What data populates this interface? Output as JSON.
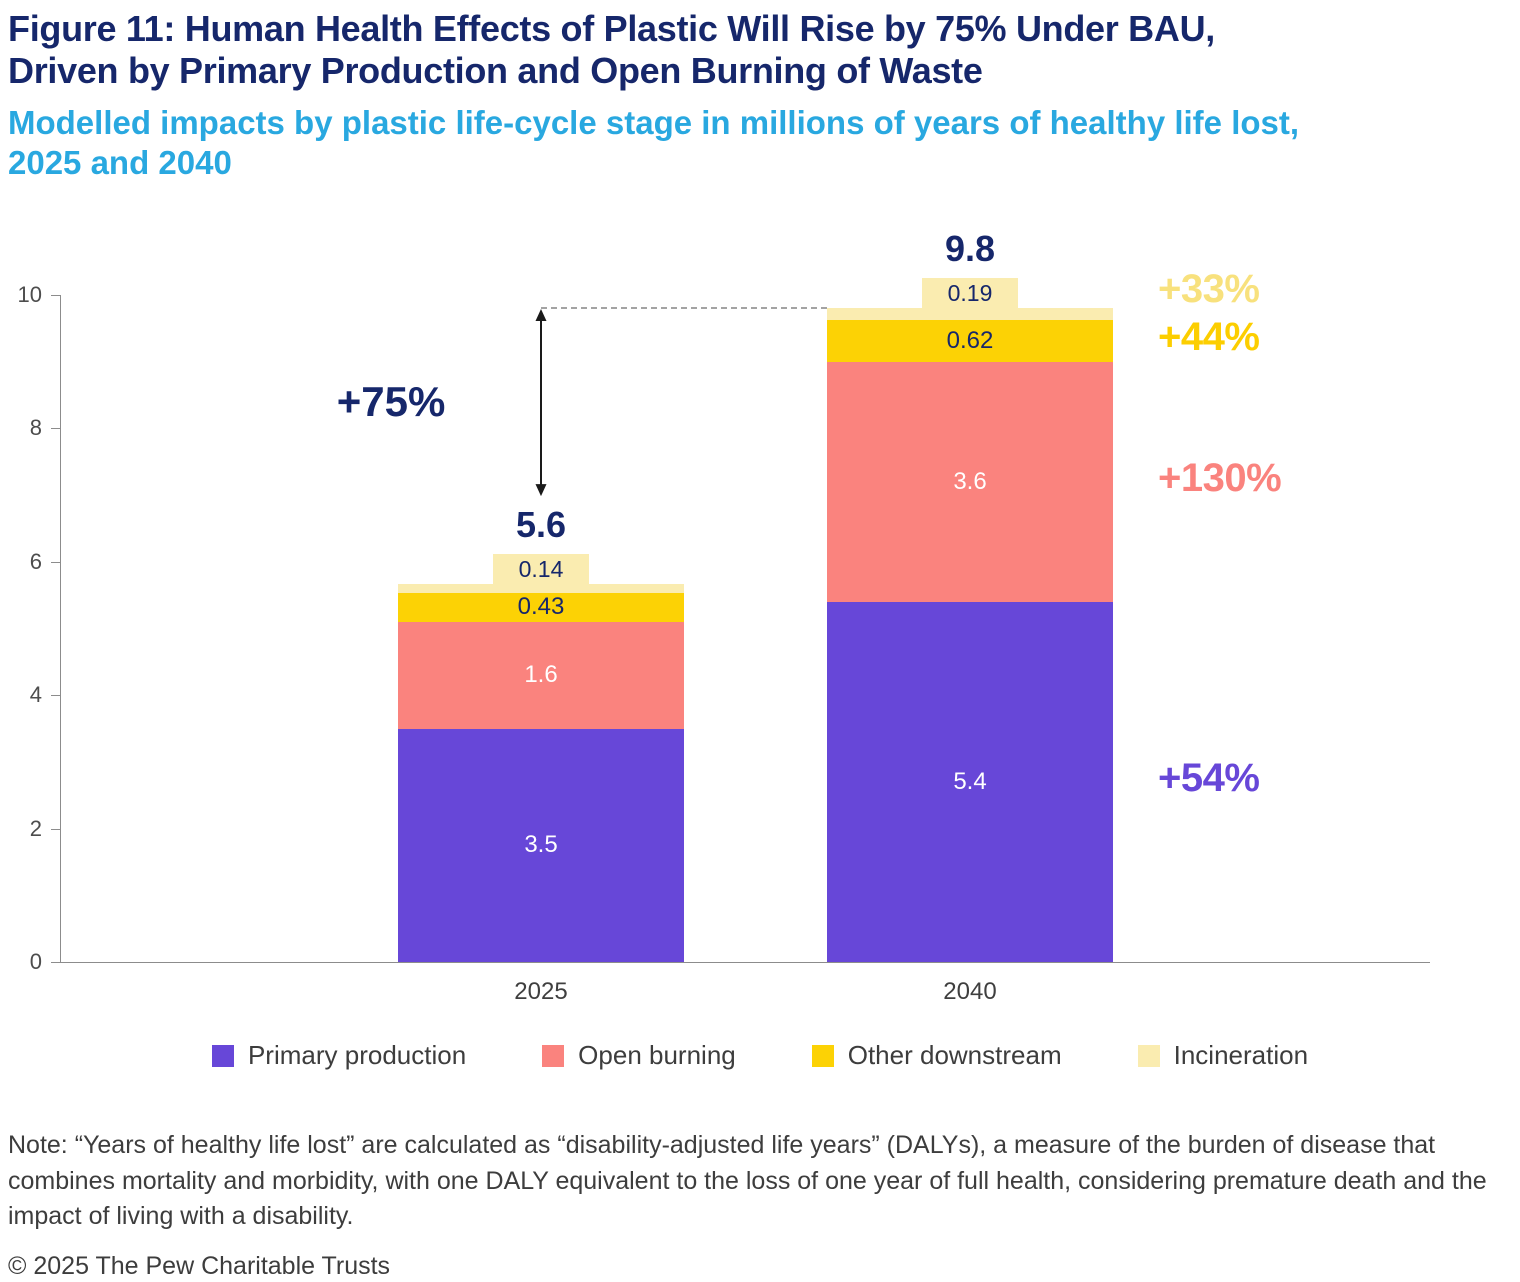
{
  "figure": {
    "title_lines": [
      "Figure 11: Human Health Effects of Plastic Will Rise by 75% Under BAU,",
      "Driven by Primary Production and Open Burning of Waste"
    ],
    "subtitle_lines": [
      "Modelled impacts by plastic life-cycle stage in millions of years of healthy life lost,",
      "2025 and 2040"
    ],
    "note": "Note: “Years of healthy life lost” are calculated as “disability-adjusted life years” (DALYs), a measure of the burden of disease that combines mortality and morbidity, with one DALY equivalent to the loss of one year of full health, considering premature death and the impact of living with a disability.",
    "copyright": "© 2025 The Pew Charitable Trusts",
    "colors": {
      "title_navy": "#16276b",
      "subtitle_blue": "#29a8e0"
    }
  },
  "chart_data": {
    "type": "bar",
    "stacked": true,
    "categories": [
      "2025",
      "2040"
    ],
    "series": [
      {
        "name": "Primary production",
        "color": "#6747d8",
        "label_color": "#ffffff",
        "values": [
          3.5,
          5.4
        ]
      },
      {
        "name": "Open burning",
        "color": "#fa837e",
        "label_color": "#ffffff",
        "values": [
          1.6,
          3.6
        ]
      },
      {
        "name": "Other downstream",
        "color": "#fcd205",
        "label_color": "#16276b",
        "values": [
          0.43,
          0.62
        ]
      },
      {
        "name": "Incineration",
        "color": "#faecb0",
        "label_color": "#16276b",
        "values": [
          0.14,
          0.19
        ]
      }
    ],
    "totals": [
      "5.6",
      "9.8"
    ],
    "title": "",
    "xlabel": "",
    "ylabel": "",
    "ylim": [
      0,
      10
    ],
    "yticks": [
      0,
      2,
      4,
      6,
      8,
      10
    ],
    "grid": false,
    "legend_position": "bottom",
    "annotations": {
      "total_change": "+75%",
      "pct_changes": [
        {
          "series": "Primary production",
          "label": "+54%",
          "color": "#6747d8"
        },
        {
          "series": "Open burning",
          "label": "+130%",
          "color": "#fa837e"
        },
        {
          "series": "Other downstream",
          "label": "+44%",
          "color": "#fcce00"
        },
        {
          "series": "Incineration",
          "label": "+33%",
          "color": "#f8e17d"
        }
      ]
    }
  }
}
